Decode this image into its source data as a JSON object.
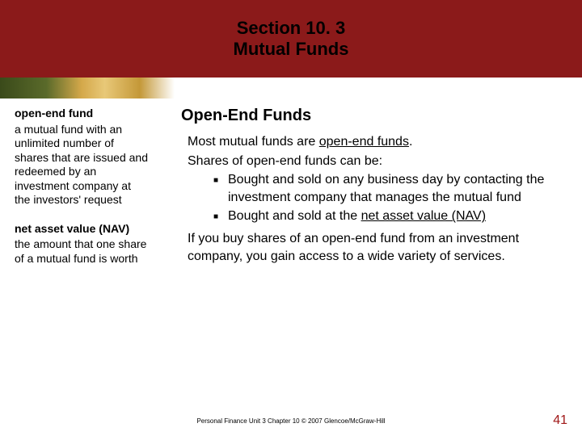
{
  "header": {
    "line1": "Section 10. 3",
    "line2": "Mutual Funds"
  },
  "sidebar": {
    "terms": [
      {
        "title": "open-end fund",
        "def": "a mutual fund with an unlimited number of shares that are issued and redeemed by an investment company at the investors' request"
      },
      {
        "title": "net asset value (NAV)",
        "def": "the amount that one share of a mutual fund is worth"
      }
    ]
  },
  "main": {
    "heading": "Open-End Funds",
    "intro_pre": "Most mutual funds are ",
    "intro_term": "open-end funds",
    "intro_post": ".",
    "line2": "Shares of open-end funds can be:",
    "bullets": [
      "Bought and sold on any business day by contacting the investment company that manages the mutual fund",
      "Bought and sold at the "
    ],
    "bullet2_term": "net asset value (NAV)",
    "closing": "If you buy shares of an open-end fund from an investment company, you gain access to a wide variety of services."
  },
  "footer": "Personal Finance  Unit 3  Chapter 10  © 2007  Glencoe/McGraw-Hill",
  "page": "41",
  "colors": {
    "header_bg": "#8b1a1a",
    "page_num": "#a01818"
  }
}
